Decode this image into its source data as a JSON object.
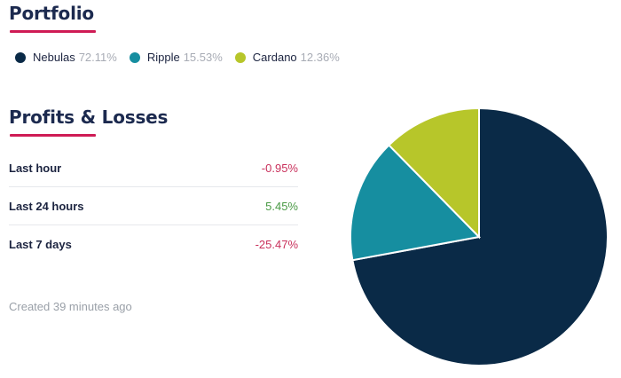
{
  "portfolio": {
    "title": "Portfolio",
    "legend": [
      {
        "name": "Nebulas",
        "percent": "72.11%",
        "color": "#0a2a47"
      },
      {
        "name": "Ripple",
        "percent": "15.53%",
        "color": "#168ea0"
      },
      {
        "name": "Cardano",
        "percent": "12.36%",
        "color": "#b7c62a"
      }
    ]
  },
  "profits_losses": {
    "title": "Profits & Losses",
    "rows": [
      {
        "label": "Last hour",
        "value": "-0.95%",
        "trend": "negative"
      },
      {
        "label": "Last 24 hours",
        "value": "5.45%",
        "trend": "positive"
      },
      {
        "label": "Last 7 days",
        "value": "-25.47%",
        "trend": "negative"
      }
    ]
  },
  "footer": {
    "created": "Created 39 minutes ago"
  },
  "colors": {
    "accent_underline": "#cf1b55",
    "negative": "#c9315c",
    "positive": "#4a9a45"
  },
  "chart_data": {
    "type": "pie",
    "title": "",
    "slices": [
      {
        "name": "Nebulas",
        "value": 72.11,
        "color": "#0a2a47"
      },
      {
        "name": "Ripple",
        "value": 15.53,
        "color": "#168ea0"
      },
      {
        "name": "Cardano",
        "value": 12.36,
        "color": "#b7c62a"
      }
    ],
    "start_angle_deg": 0,
    "direction": "clockwise"
  }
}
